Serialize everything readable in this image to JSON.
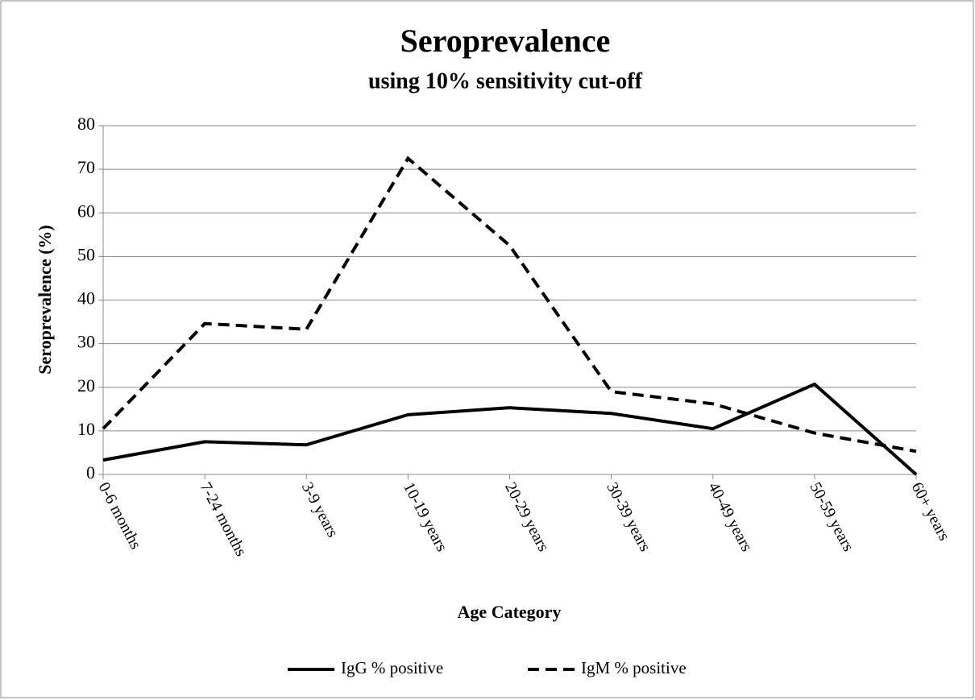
{
  "chart_data": {
    "type": "line",
    "title": "Seroprevalence",
    "subtitle": "using 10% sensitivity cut-off",
    "x_label": "Age Category",
    "y_label": "Seroprevalence (%)",
    "categories": [
      "0-6 months",
      "7-24 months",
      "3-9 years",
      "10-19 years",
      "20-29 years",
      "30-39 years",
      "40-49 years",
      "50-59 years",
      "60+ years"
    ],
    "series": [
      {
        "name": "IgG % positive",
        "color": "#000000",
        "dash": "solid",
        "values": [
          3.3,
          7.5,
          6.8,
          13.7,
          15.3,
          14,
          10.5,
          20.7,
          0
        ]
      },
      {
        "name": "IgM % positive",
        "color": "#000000",
        "dash": "dashed",
        "values": [
          10.5,
          34.6,
          33.3,
          72.5,
          52.5,
          19,
          16.2,
          9.5,
          5.3
        ]
      }
    ],
    "ylim": [
      0,
      80
    ],
    "yticks": [
      0,
      10,
      20,
      30,
      40,
      50,
      60,
      70,
      80
    ],
    "grid": true,
    "legend": "bottom"
  }
}
